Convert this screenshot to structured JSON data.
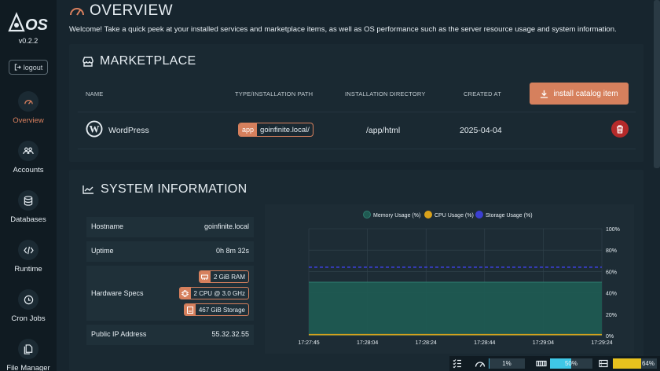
{
  "app": {
    "logo_text": "OS",
    "version": "v0.2.2",
    "logout_label": "logout"
  },
  "sidebar": {
    "items": [
      {
        "label": "Overview",
        "icon": "gauge-icon",
        "active": true
      },
      {
        "label": "Accounts",
        "icon": "users-icon"
      },
      {
        "label": "Databases",
        "icon": "database-icon"
      },
      {
        "label": "Runtime",
        "icon": "code-icon"
      },
      {
        "label": "Cron Jobs",
        "icon": "clock-icon"
      },
      {
        "label": "File Manager",
        "icon": "files-icon"
      }
    ]
  },
  "header": {
    "title": "Overview",
    "welcome": "Welcome! Take a quick peek at your installed services and marketplace items, as well as OS performance such as the server resource usage and system information."
  },
  "marketplace": {
    "title": "Marketplace",
    "columns": [
      "NAME",
      "TYPE/INSTALLATION PATH",
      "INSTALLATION DIRECTORY",
      "CREATED AT"
    ],
    "install_label": "install catalog item",
    "items": [
      {
        "name": "WordPress",
        "type_prefix": "app",
        "path": "goinfinite.local/",
        "directory": "/app/html",
        "created_at": "2025-04-04"
      }
    ]
  },
  "system_info": {
    "title": "System Information",
    "hostname_label": "Hostname",
    "hostname": "goinfinite.local",
    "uptime_label": "Uptime",
    "uptime": "0h 8m 32s",
    "hardware_label": "Hardware Specs",
    "specs": [
      "2 GiB RAM",
      "2 CPU @ 3.0 GHz",
      "467 GiB Storage"
    ],
    "ip_label": "Public IP Address",
    "ip": "55.32.32.55"
  },
  "chart_data": {
    "type": "area",
    "x": [
      "17:27:45",
      "17:28:04",
      "17:28:24",
      "17:28:44",
      "17:29:04",
      "17:29:24"
    ],
    "ylim": [
      0,
      100
    ],
    "y_ticks": [
      "0%",
      "20%",
      "40%",
      "60%",
      "80%",
      "100%"
    ],
    "legend_position": "top",
    "series": [
      {
        "name": "Memory Usage (%)",
        "color": "#1f5a52",
        "values": [
          50,
          50,
          50,
          50,
          50,
          50
        ]
      },
      {
        "name": "CPU Usage (%)",
        "color": "#d9a21b",
        "values": [
          1,
          1,
          1,
          1,
          1,
          1
        ]
      },
      {
        "name": "Storage Usage (%)",
        "color": "#3b3fd1",
        "values": [
          64,
          64,
          64,
          64,
          64,
          64
        ]
      }
    ]
  },
  "statusbar": {
    "cpu": {
      "text": "1%",
      "value": 1,
      "color": "#3ea7c9"
    },
    "memory": {
      "text": "50%",
      "value": 50,
      "color": "#3fc7e6"
    },
    "storage": {
      "text": "64%",
      "value": 64,
      "color": "#e8c21e"
    }
  }
}
